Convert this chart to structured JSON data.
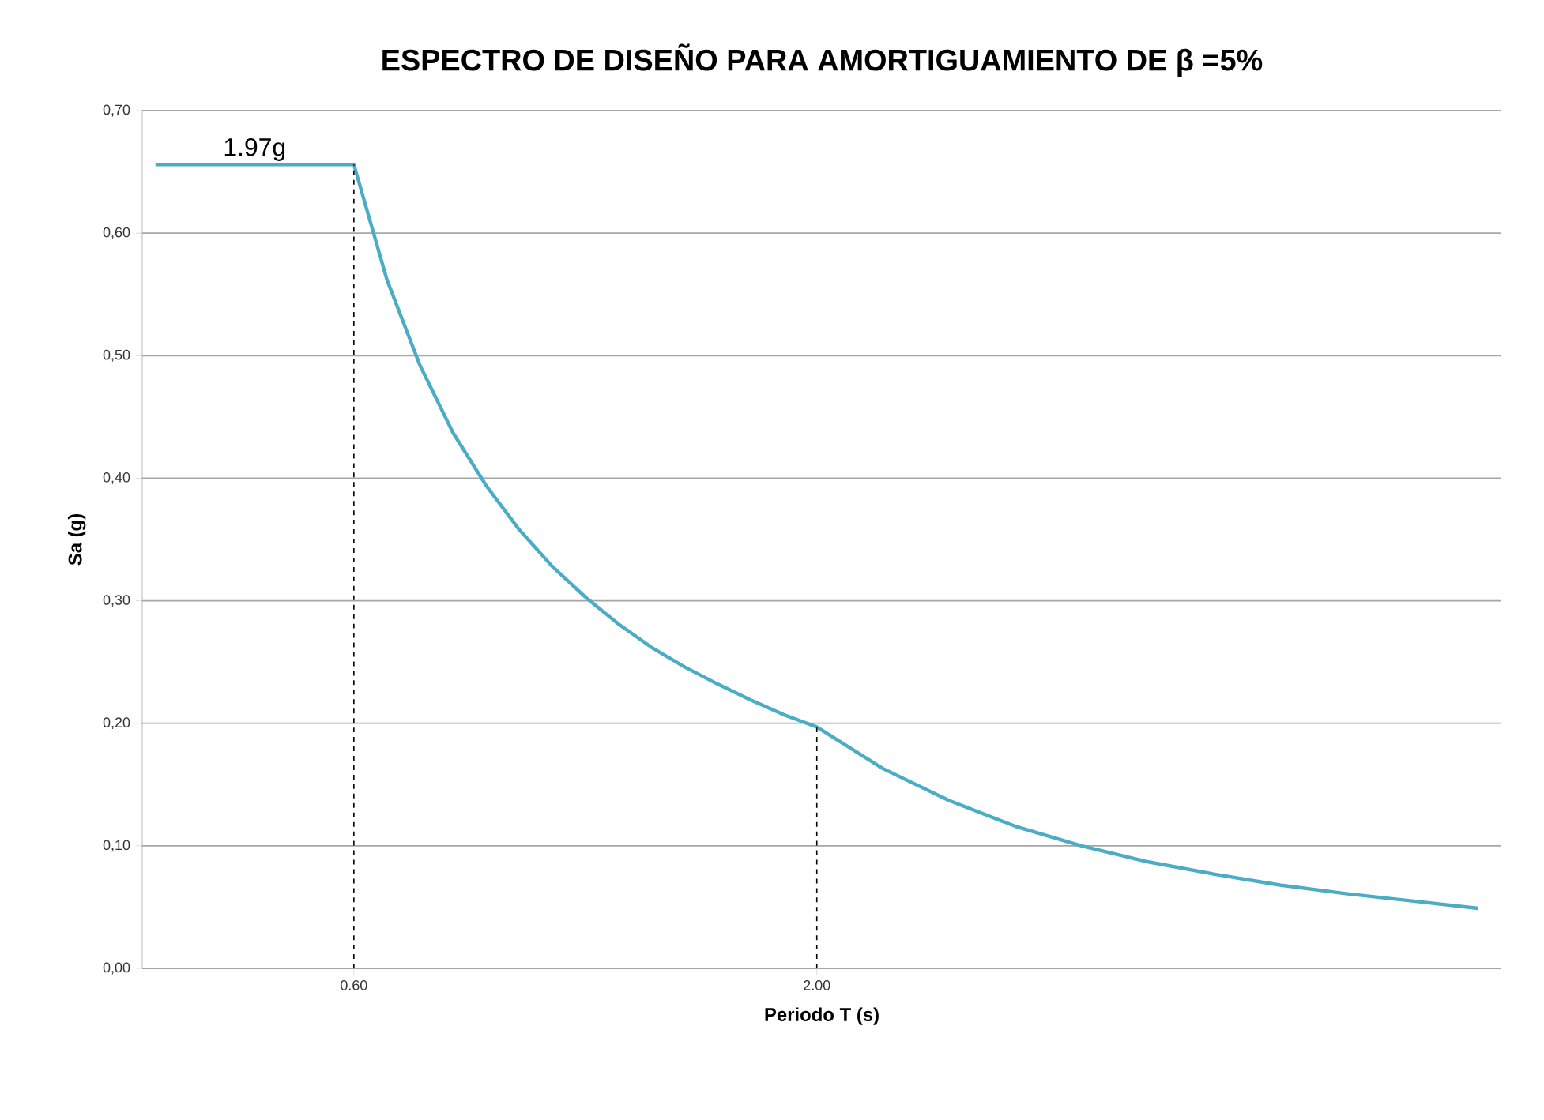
{
  "chart_data": {
    "type": "line",
    "title": "ESPECTRO DE DISEÑO PARA AMORTIGUAMIENTO DE β =5%",
    "xlabel": "Periodo T (s)",
    "ylabel": "Sa (g)",
    "xlim": [
      -0.04,
      4.07
    ],
    "ylim": [
      0,
      0.7
    ],
    "xticks": [
      {
        "value": 0.6,
        "label": "0.60"
      },
      {
        "value": 2.0,
        "label": "2.00"
      }
    ],
    "yticks": [
      {
        "value": 0,
        "label": "0,00"
      },
      {
        "value": 0.1,
        "label": "0,10"
      },
      {
        "value": 0.2,
        "label": "0,20"
      },
      {
        "value": 0.3,
        "label": "0,30"
      },
      {
        "value": 0.4,
        "label": "0,40"
      },
      {
        "value": 0.5,
        "label": "0,50"
      },
      {
        "value": 0.6,
        "label": "0,60"
      },
      {
        "value": 0.7,
        "label": "0,70"
      }
    ],
    "grid": "y",
    "marker": "none",
    "series": [
      {
        "color": "#4bacc6",
        "line_style": "solid",
        "x": [
          0,
          0.6,
          0.7,
          0.8,
          0.9,
          1.0,
          1.1,
          1.2,
          1.3,
          1.4,
          1.5,
          1.6,
          1.7,
          1.8,
          1.9,
          2.0,
          2.2,
          2.4,
          2.6,
          2.8,
          3.0,
          3.2,
          3.4,
          3.6,
          3.8,
          4.0
        ],
        "values": [
          0.656,
          0.656,
          0.562,
          0.492,
          0.437,
          0.394,
          0.358,
          0.328,
          0.303,
          0.281,
          0.262,
          0.246,
          0.232,
          0.219,
          0.207,
          0.197,
          0.163,
          0.137,
          0.116,
          0.1,
          0.087,
          0.077,
          0.068,
          0.061,
          0.055,
          0.049
        ]
      },
      {
        "color": "#000000",
        "line_style": "dashed",
        "x": [
          0.6,
          0.6
        ],
        "values": [
          0,
          0.656
        ]
      },
      {
        "color": "#000000",
        "line_style": "dashed",
        "x": [
          2.0,
          2.0
        ],
        "values": [
          0,
          0.197
        ]
      }
    ],
    "annotations": [
      {
        "text": "1.97g",
        "x": 0.3,
        "y": 0.656
      }
    ]
  }
}
